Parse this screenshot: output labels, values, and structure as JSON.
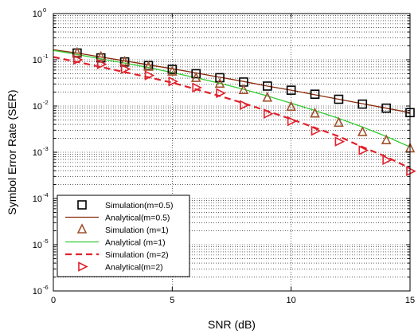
{
  "chart_data": {
    "type": "line",
    "title": "",
    "xlabel": "SNR (dB)",
    "ylabel": "Symbol Error Rate (SER)",
    "xlim": [
      0,
      15
    ],
    "ylim": [
      1e-06,
      1
    ],
    "yscale": "log",
    "grid": true,
    "legend_position": "bottom-left",
    "xticks": [
      0,
      5,
      10,
      15
    ],
    "yticks": [
      {
        "value": 1e-06,
        "base": "10",
        "exp": "-6"
      },
      {
        "value": 1e-05,
        "base": "10",
        "exp": "-5"
      },
      {
        "value": 0.0001,
        "base": "10",
        "exp": "-4"
      },
      {
        "value": 0.001,
        "base": "10",
        "exp": "-3"
      },
      {
        "value": 0.01,
        "base": "10",
        "exp": "-2"
      },
      {
        "value": 0.1,
        "base": "10",
        "exp": "-1"
      },
      {
        "value": 1,
        "base": "10",
        "exp": "0"
      }
    ],
    "series": [
      {
        "name": "Simulation(m=0.5)",
        "color": "#000000",
        "line": "none",
        "marker": "square",
        "x": [
          1,
          2,
          3,
          4,
          5,
          6,
          7,
          8,
          9,
          10,
          11,
          12,
          13,
          14,
          15
        ],
        "y": [
          0.14,
          0.11,
          0.09,
          0.075,
          0.062,
          0.05,
          0.041,
          0.033,
          0.027,
          0.022,
          0.018,
          0.014,
          0.011,
          0.009,
          0.0072
        ]
      },
      {
        "name": "Analytical(m=0.5)",
        "color": "#8b2a0a",
        "line": "solid",
        "marker": "none",
        "x": [
          0,
          1,
          2,
          3,
          4,
          5,
          6,
          7,
          8,
          9,
          10,
          11,
          12,
          13,
          14,
          15
        ],
        "y": [
          0.165,
          0.14,
          0.115,
          0.095,
          0.078,
          0.064,
          0.052,
          0.042,
          0.034,
          0.027,
          0.022,
          0.0175,
          0.014,
          0.0112,
          0.009,
          0.0072
        ]
      },
      {
        "name": "Simulation (m=1)",
        "color": "#a0522d",
        "line": "none",
        "marker": "triangle-up",
        "x": [
          1,
          2,
          3,
          4,
          5,
          6,
          7,
          8,
          9,
          10,
          11,
          12,
          13,
          14,
          15
        ],
        "y": [
          0.14,
          0.115,
          0.09,
          0.07,
          0.055,
          0.04,
          0.03,
          0.022,
          0.015,
          0.0095,
          0.0068,
          0.0043,
          0.0027,
          0.0018,
          0.0012
        ]
      },
      {
        "name": "Analytical (m=1)",
        "color": "#33cc33",
        "line": "solid",
        "marker": "none",
        "x": [
          0,
          1,
          2,
          3,
          4,
          5,
          6,
          7,
          8,
          9,
          10,
          11,
          12,
          13,
          14,
          15
        ],
        "y": [
          0.16,
          0.13,
          0.105,
          0.085,
          0.068,
          0.053,
          0.041,
          0.031,
          0.023,
          0.0165,
          0.0115,
          0.008,
          0.0054,
          0.0035,
          0.0022,
          0.0013
        ]
      },
      {
        "name": "Simulation  (m=2)",
        "color": "#e0212b",
        "line": "dashed",
        "marker": "none",
        "x": [
          0,
          1,
          2,
          3,
          4,
          5,
          6,
          7,
          8,
          9,
          10,
          11,
          12,
          13,
          14,
          15
        ],
        "y": [
          0.115,
          0.09,
          0.07,
          0.054,
          0.042,
          0.032,
          0.023,
          0.0165,
          0.0115,
          0.0078,
          0.0052,
          0.0034,
          0.0022,
          0.0013,
          0.0008,
          0.00045
        ]
      },
      {
        "name": "Analytical(m=2)",
        "color": "#e0212b",
        "line": "none",
        "marker": "triangle-right",
        "x": [
          1,
          2,
          3,
          4,
          5,
          6,
          7,
          8,
          9,
          10,
          11,
          12,
          13,
          14,
          15
        ],
        "y": [
          0.1,
          0.08,
          0.063,
          0.046,
          0.034,
          0.025,
          0.019,
          0.0105,
          0.0068,
          0.0047,
          0.0029,
          0.0017,
          0.0011,
          0.00068,
          0.00039
        ]
      }
    ]
  }
}
